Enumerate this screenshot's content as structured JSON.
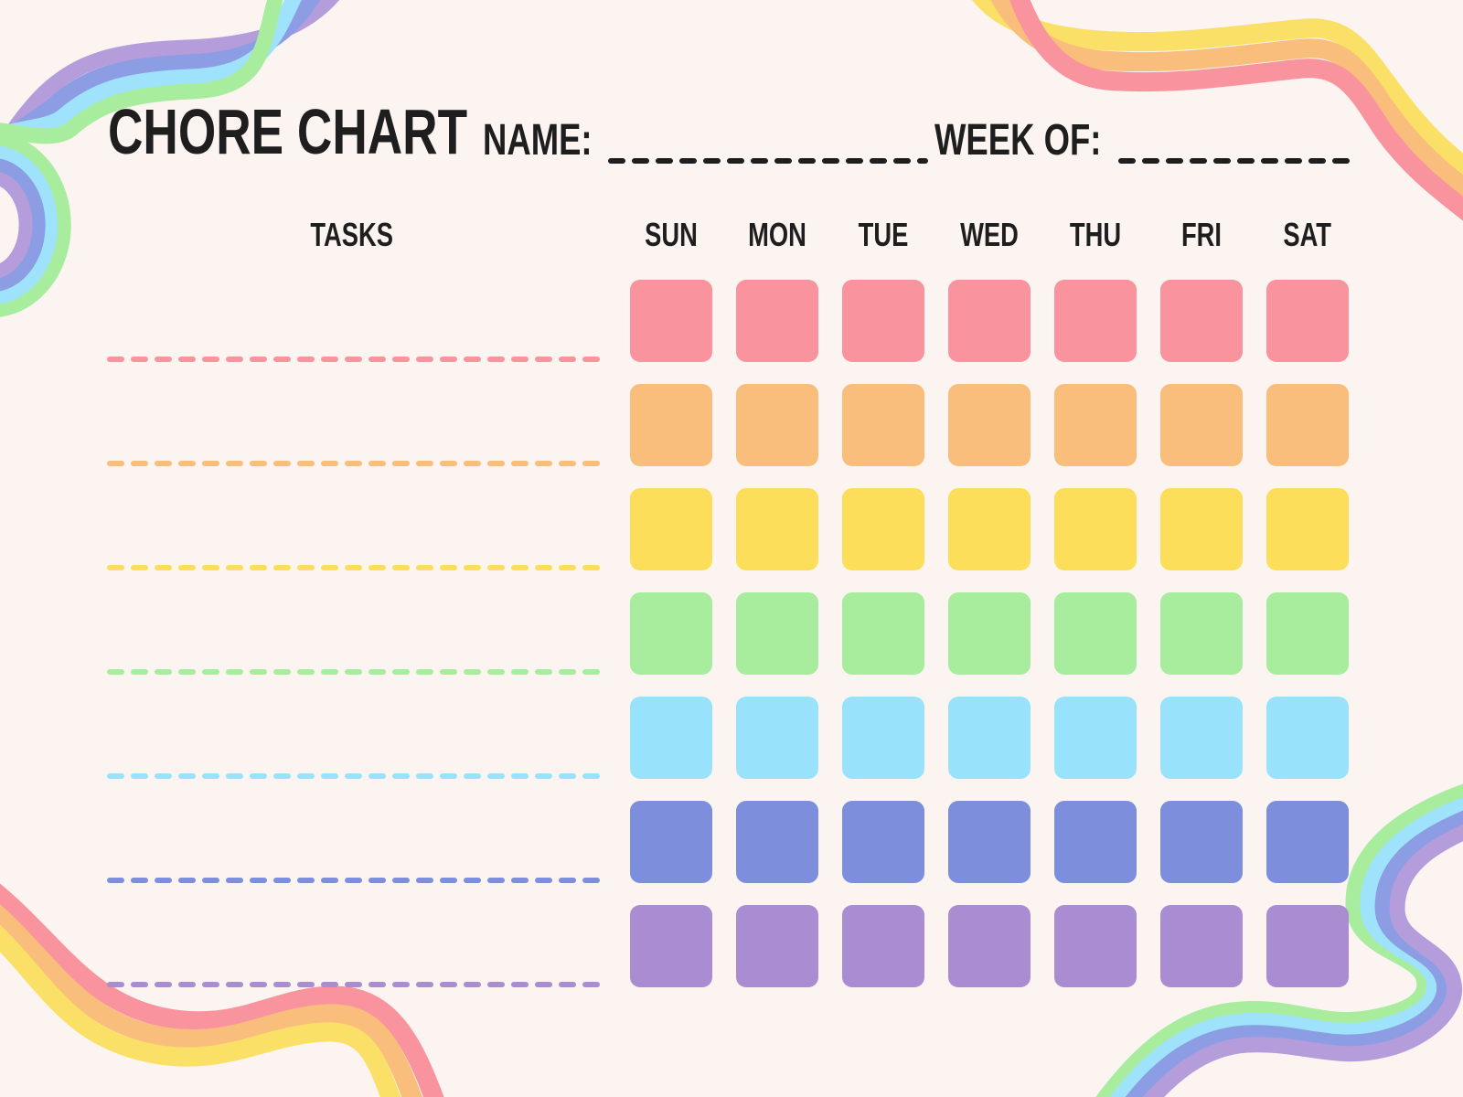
{
  "page": {
    "background_color": "#FBF4F1",
    "text_color": "#1E1E1E"
  },
  "header": {
    "title": "CHORE CHART",
    "name_label": "NAME:",
    "name_value": "",
    "week_of_label": "WEEK OF:",
    "week_of_value": "",
    "line_color": "#1E1E1E"
  },
  "table": {
    "tasks_label": "TASKS",
    "day_headers": [
      "SUN",
      "MON",
      "TUE",
      "WED",
      "THU",
      "FRI",
      "SAT"
    ],
    "rows": [
      {
        "task_value": "",
        "color_name": "pink",
        "color": "#F9949E"
      },
      {
        "task_value": "",
        "color_name": "orange",
        "color": "#F9BE7B"
      },
      {
        "task_value": "",
        "color_name": "yellow",
        "color": "#FCDE5B"
      },
      {
        "task_value": "",
        "color_name": "green",
        "color": "#A8EC9E"
      },
      {
        "task_value": "",
        "color_name": "sky-blue",
        "color": "#99E2FB"
      },
      {
        "task_value": "",
        "color_name": "periwinkle",
        "color": "#7D8EDC"
      },
      {
        "task_value": "",
        "color_name": "purple",
        "color": "#A98CD1"
      }
    ]
  },
  "decorations": {
    "cool": {
      "purple": "#B59DDC",
      "periwinkle": "#8C9DE4",
      "sky_blue": "#9FE2FB",
      "green": "#A8EC9E"
    },
    "warm": {
      "yellow": "#FBE068",
      "orange": "#F9BE7B",
      "pink": "#F9949E"
    }
  }
}
